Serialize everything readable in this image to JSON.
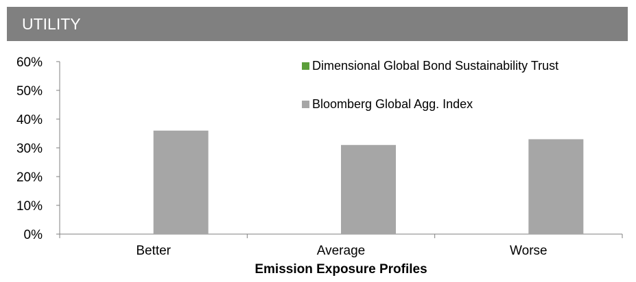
{
  "header": {
    "title": "UTILITY"
  },
  "chart_data": {
    "type": "bar",
    "title": "UTILITY",
    "xlabel": "Emission Exposure Profiles",
    "ylabel": "",
    "categories": [
      "Better",
      "Average",
      "Worse"
    ],
    "series": [
      {
        "name": "Dimensional Global Bond Sustainability Trust",
        "color": "#5b9e3a",
        "values": [
          0,
          0,
          0
        ]
      },
      {
        "name": "Bloomberg Global Agg. Index",
        "color": "#a6a6a6",
        "values": [
          36,
          31,
          33
        ]
      }
    ],
    "ylim": [
      0,
      60
    ],
    "yticks": [
      0,
      10,
      20,
      30,
      40,
      50,
      60
    ],
    "ytick_labels": [
      "0%",
      "10%",
      "20%",
      "30%",
      "40%",
      "50%",
      "60%"
    ],
    "legend": "top-right",
    "grid": false
  }
}
